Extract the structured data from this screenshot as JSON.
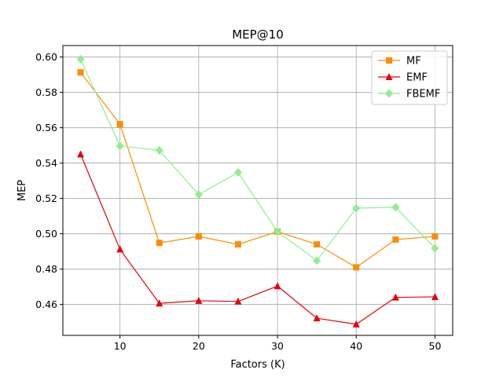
{
  "chart_data": {
    "type": "line",
    "title": "MEP@10",
    "xlabel": "Factors (K)",
    "ylabel": "MEP",
    "x": [
      5,
      10,
      15,
      20,
      25,
      30,
      35,
      40,
      45,
      50
    ],
    "xlim": [
      2.75,
      52.25
    ],
    "ylim": [
      0.4425,
      0.6065
    ],
    "xticks": [
      10,
      20,
      30,
      40,
      50
    ],
    "yticks": [
      0.46,
      0.48,
      0.5,
      0.52,
      0.54,
      0.56,
      0.58,
      0.6
    ],
    "ytick_labels": [
      "0.46",
      "0.48",
      "0.50",
      "0.52",
      "0.54",
      "0.56",
      "0.58",
      "0.60"
    ],
    "grid": true,
    "legend_position": "top-right",
    "series": [
      {
        "name": "MF",
        "color": "#ff8c00",
        "marker": "square",
        "values": [
          0.5913,
          0.562,
          0.4948,
          0.4985,
          0.494,
          0.5012,
          0.494,
          0.481,
          0.4967,
          0.4985
        ]
      },
      {
        "name": "EMF",
        "color": "#e8000b",
        "marker": "triangle",
        "values": [
          0.545,
          0.4912,
          0.4606,
          0.4621,
          0.4617,
          0.4704,
          0.4522,
          0.4488,
          0.464,
          0.4643
        ]
      },
      {
        "name": "FBEMF",
        "color": "#90ee90",
        "marker": "diamond",
        "values": [
          0.5988,
          0.5497,
          0.5472,
          0.5222,
          0.5347,
          0.5012,
          0.4848,
          0.5145,
          0.515,
          0.4918
        ]
      }
    ]
  }
}
